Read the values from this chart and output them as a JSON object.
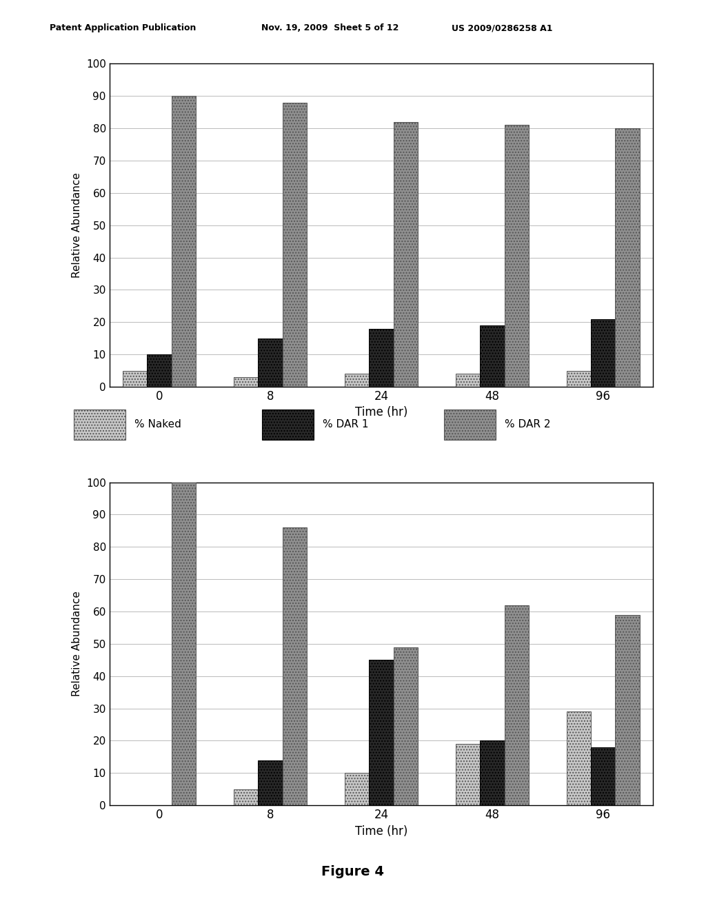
{
  "time_labels": [
    "0",
    "8",
    "24",
    "48",
    "96"
  ],
  "chart1": {
    "naked": [
      5,
      3,
      4,
      4,
      5
    ],
    "dar1": [
      10,
      15,
      18,
      19,
      21
    ],
    "dar2": [
      90,
      88,
      82,
      81,
      80
    ]
  },
  "chart2": {
    "naked": [
      0,
      5,
      10,
      19,
      29
    ],
    "dar1": [
      0,
      14,
      45,
      20,
      18
    ],
    "dar2": [
      100,
      86,
      49,
      62,
      59
    ]
  },
  "ylabel": "Relative Abundance",
  "xlabel": "Time (hr)",
  "ylim": [
    0,
    100
  ],
  "yticks": [
    0,
    10,
    20,
    30,
    40,
    50,
    60,
    70,
    80,
    90,
    100
  ],
  "legend_labels": [
    "% Naked",
    "% DAR 1",
    "% DAR 2"
  ],
  "figure_label": "Figure 4",
  "header_left": "Patent Application Publication",
  "header_mid": "Nov. 19, 2009  Sheet 5 of 12",
  "header_right": "US 2009/0286258 A1",
  "color_naked": "#c8c8c8",
  "color_dar1": "#282828",
  "color_dar2": "#909090",
  "bar_width": 0.22
}
